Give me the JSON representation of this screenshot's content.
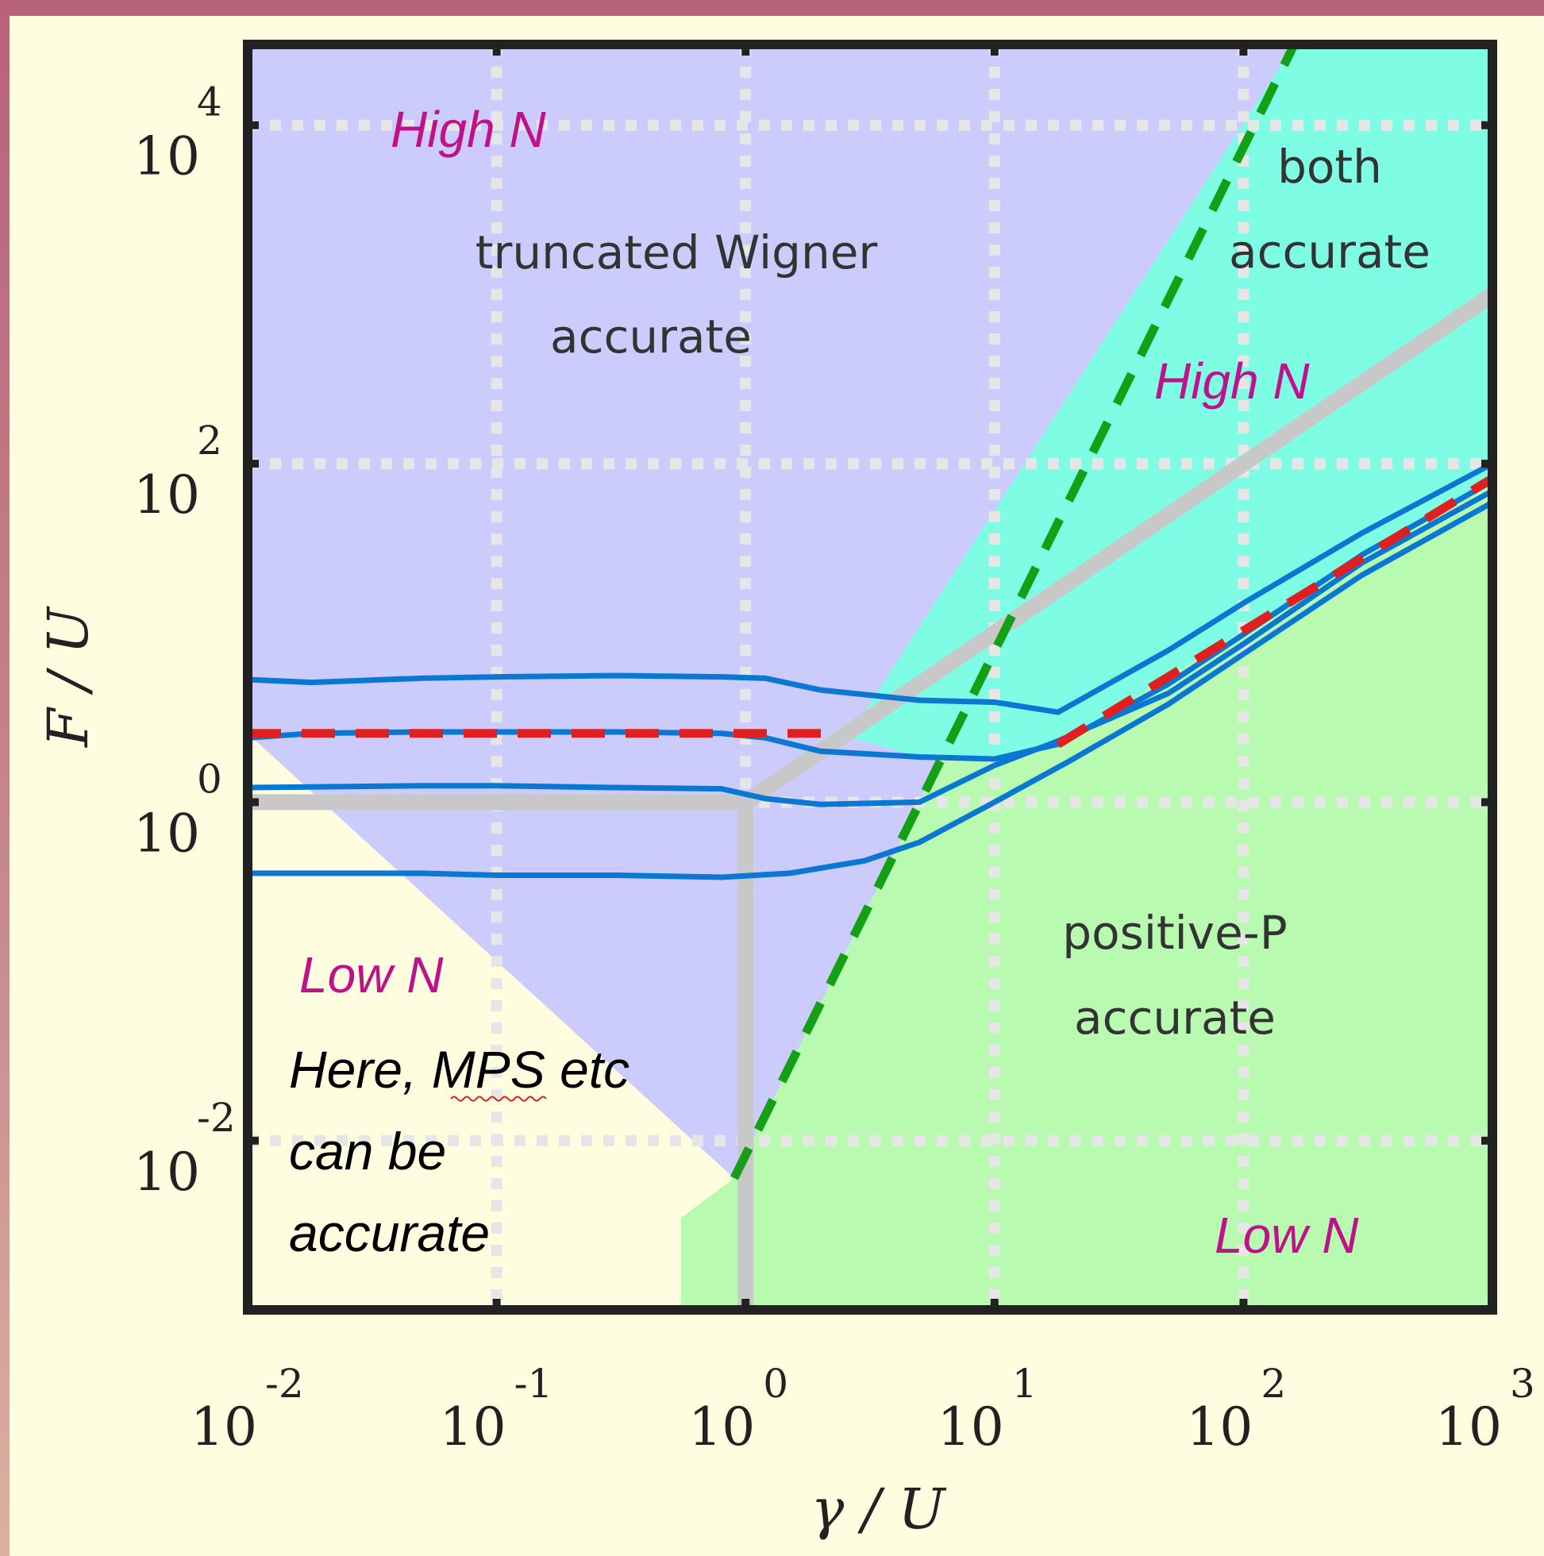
{
  "chart_data": {
    "type": "line",
    "xlabel": "γ / U",
    "ylabel": "F / U",
    "x_scale": "log",
    "y_scale": "log",
    "xlim": [
      0.01,
      1000
    ],
    "ylim": [
      0.001,
      30000
    ],
    "x_ticks": [
      {
        "base": "10",
        "exp": "-2"
      },
      {
        "base": "10",
        "exp": "-1"
      },
      {
        "base": "10",
        "exp": "0"
      },
      {
        "base": "10",
        "exp": "1"
      },
      {
        "base": "10",
        "exp": "2"
      },
      {
        "base": "10",
        "exp": "3"
      }
    ],
    "y_ticks": [
      {
        "base": "10",
        "exp": "4"
      },
      {
        "base": "10",
        "exp": "2"
      },
      {
        "base": "10",
        "exp": "0"
      },
      {
        "base": "10",
        "exp": "-2"
      }
    ],
    "grid": true,
    "regions": [
      {
        "id": "truncated-wigner",
        "label_lines": [
          "truncated Wigner",
          "accurate"
        ],
        "color": "#ccccfc"
      },
      {
        "id": "both",
        "label_lines": [
          "both",
          "accurate"
        ],
        "color": "#7ffde4"
      },
      {
        "id": "positive-p",
        "label_lines": [
          "positive-P",
          "accurate"
        ],
        "color": "#b8fbb0"
      },
      {
        "id": "mps",
        "label_lines": [
          "Here, MPS etc",
          "can be",
          "accurate"
        ],
        "color": "#fffde0"
      }
    ],
    "n_labels": [
      "High N",
      "High N",
      "Low N",
      "Low N"
    ],
    "series": [
      {
        "color": "#0a78d2",
        "x": [
          0.01,
          0.018,
          0.05,
          0.1,
          0.3,
          0.8,
          1.2,
          2,
          5,
          10,
          18,
          50,
          100,
          300,
          1000
        ],
        "y": [
          5.3,
          5.1,
          5.4,
          5.5,
          5.6,
          5.5,
          5.4,
          4.6,
          4.0,
          3.9,
          3.4,
          7.9,
          15,
          39,
          100
        ]
      },
      {
        "color": "#0a78d2",
        "x": [
          0.01,
          0.018,
          0.05,
          0.1,
          0.3,
          0.8,
          1.2,
          2,
          5,
          10,
          18,
          50,
          100,
          300,
          1000
        ],
        "y": [
          2.4,
          2.55,
          2.6,
          2.6,
          2.6,
          2.55,
          2.4,
          2.0,
          1.85,
          1.8,
          2.2,
          5.0,
          9.8,
          29,
          79
        ]
      },
      {
        "color": "#0a78d2",
        "x": [
          0.01,
          0.05,
          0.1,
          0.3,
          0.8,
          1.2,
          2,
          5,
          10,
          18,
          50,
          100,
          300,
          1000
        ],
        "y": [
          1.22,
          1.25,
          1.25,
          1.22,
          1.2,
          1.05,
          0.97,
          1.0,
          1.65,
          2.3,
          4.4,
          8.6,
          26,
          69
        ]
      },
      {
        "color": "#0a78d2",
        "x": [
          0.01,
          0.05,
          0.1,
          0.3,
          0.8,
          1.5,
          3,
          5,
          10,
          20,
          50,
          100,
          300,
          1000
        ],
        "y": [
          0.38,
          0.38,
          0.37,
          0.37,
          0.36,
          0.38,
          0.45,
          0.58,
          1.0,
          1.75,
          3.8,
          7.5,
          22,
          59
        ]
      }
    ],
    "reference_lines": [
      {
        "style": "dashed",
        "color": "#e02020",
        "x": [
          0.01,
          2.3
        ],
        "y": [
          2.55,
          2.55
        ]
      },
      {
        "style": "dashed",
        "color": "#e02020",
        "x": [
          18,
          1000
        ],
        "y": [
          2.2,
          82
        ]
      },
      {
        "style": "dashed",
        "color": "#14a014",
        "x": [
          0.9,
          160
        ],
        "y": [
          0.006,
          30000
        ]
      },
      {
        "style": "solid",
        "color": "#c8c8c8",
        "x": [
          0.01,
          1
        ],
        "y": [
          1,
          1
        ]
      },
      {
        "style": "solid",
        "color": "#c8c8c8",
        "x": [
          1,
          1
        ],
        "y": [
          0.001,
          1
        ]
      },
      {
        "style": "solid",
        "color": "#c8c8c8",
        "x": [
          1,
          1000
        ],
        "y": [
          1,
          1000
        ]
      }
    ]
  }
}
